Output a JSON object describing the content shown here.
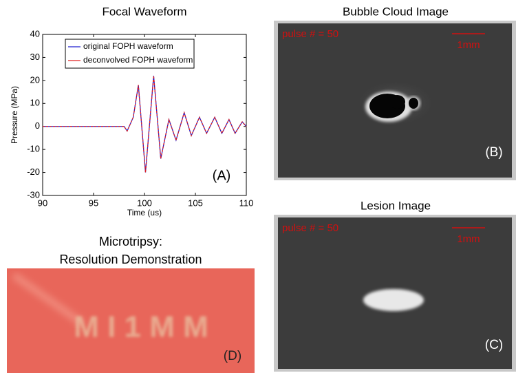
{
  "chart_data": {
    "type": "line",
    "title": "Focal Waveform",
    "xlabel": "Time (us)",
    "ylabel": "Pressure (MPa)",
    "annotation": "(A)",
    "x": [
      90,
      92,
      94,
      96,
      98,
      98.3,
      98.9,
      99.4,
      100.1,
      100.9,
      101.6,
      102.4,
      103.1,
      103.9,
      104.6,
      105.4,
      106.1,
      106.9,
      107.6,
      108.3,
      108.9,
      109.6,
      110
    ],
    "series": [
      {
        "name": "original FOPH waveform",
        "color": "#2020d0",
        "values": [
          0,
          0,
          0,
          0,
          0,
          -2,
          4,
          18,
          -20,
          22,
          -14,
          3,
          -6,
          6,
          -4,
          4,
          -3,
          4,
          -3,
          3,
          -3,
          2,
          0
        ]
      },
      {
        "name": "deconvolved FOPH waveform",
        "color": "#e02020",
        "values": [
          0,
          0,
          0,
          0,
          0,
          -2,
          4,
          18,
          -20,
          22,
          -14,
          3,
          -6,
          6,
          -4,
          4,
          -3,
          4,
          -3,
          3,
          -3,
          2,
          0
        ]
      }
    ],
    "xlim": [
      90,
      110
    ],
    "xticks": [
      90,
      95,
      100,
      105,
      110
    ],
    "ylim": [
      -30,
      40
    ],
    "yticks": [
      -30,
      -20,
      -10,
      0,
      10,
      20,
      30,
      40
    ],
    "legend": "upper left"
  },
  "panels": {
    "b": {
      "title": "Bubble Cloud Image",
      "pulse": "pulse # = 50",
      "scale": "1mm",
      "label": "(B)"
    },
    "c": {
      "title": "Lesion Image",
      "pulse": "pulse # = 50",
      "scale": "1mm",
      "label": "(C)"
    },
    "d": {
      "title_line1": "Microtripsy:",
      "title_line2": "Resolution Demonstration",
      "photo_text": "M I 1 M M",
      "label": "(D)"
    }
  }
}
